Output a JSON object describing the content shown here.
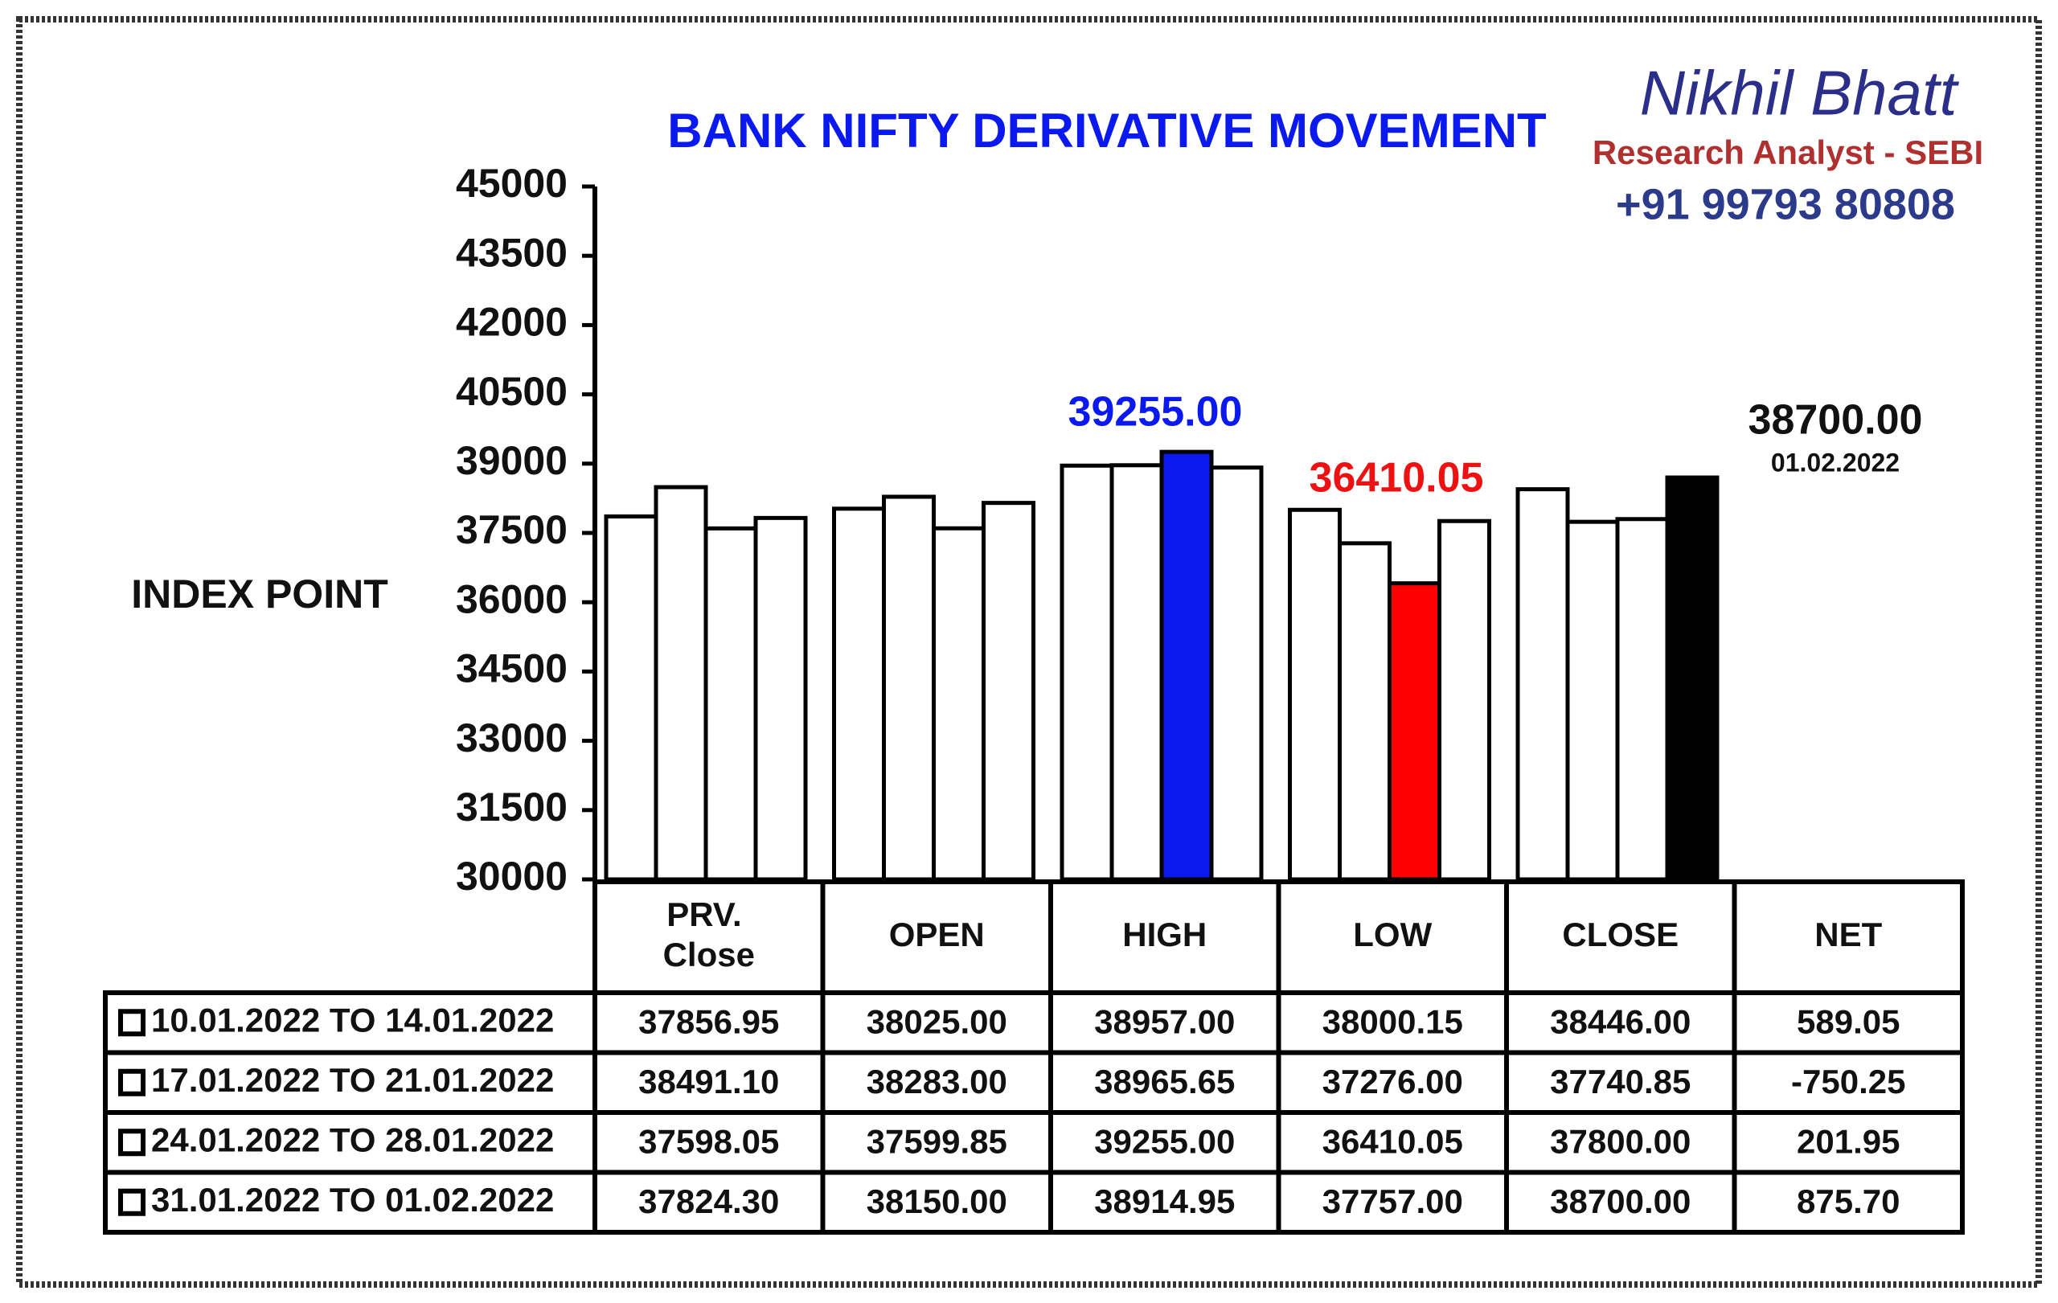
{
  "chart_data": {
    "type": "bar",
    "title": "BANK NIFTY DERIVATIVE MOVEMENT",
    "y_label": "INDEX POINT",
    "brand": {
      "name": "Nikhil Bhatt",
      "role": "Research Analyst - SEBI",
      "phone": "+91 99793 80808"
    },
    "categories": [
      "PRV. Close",
      "OPEN",
      "HIGH",
      "LOW",
      "CLOSE"
    ],
    "net_name": "NET",
    "ylim": [
      30000,
      45000
    ],
    "yticks": [
      30000,
      31500,
      33000,
      34500,
      36000,
      37500,
      39000,
      40500,
      42000,
      43500,
      45000
    ],
    "series": [
      {
        "name": "10.01.2022 TO 14.01.2022",
        "color": "#ffffff",
        "colors": [
          "#ffffff",
          "#ffffff",
          "#ffffff",
          "#ffffff",
          "#ffffff"
        ],
        "values": [
          37856.95,
          38025,
          38957,
          38000.15,
          38446
        ],
        "value_labels": [
          "37856.95",
          "38025.00",
          "38957.00",
          "38000.15",
          "38446.00"
        ]
      },
      {
        "name": "17.01.2022 TO 21.01.2022",
        "color": "#ffffff",
        "colors": [
          "#ffffff",
          "#ffffff",
          "#ffffff",
          "#ffffff",
          "#ffffff"
        ],
        "values": [
          38491.1,
          38283,
          38965.65,
          37276,
          37740.85
        ],
        "value_labels": [
          "38491.10",
          "38283.00",
          "38965.65",
          "37276.00",
          "37740.85"
        ]
      },
      {
        "name": "24.01.2022 TO 28.01.2022",
        "color": "#ffffff",
        "colors": [
          "#ffffff",
          "#ffffff",
          "#0a1aee",
          "#ff0000",
          "#ffffff"
        ],
        "values": [
          37598.05,
          37599.85,
          39255,
          36410.05,
          37800
        ],
        "value_labels": [
          "37598.05",
          "37599.85",
          "39255.00",
          "36410.05",
          "37800.00"
        ]
      },
      {
        "name": "31.01.2022 TO 01.02.2022",
        "color": "#ffffff",
        "colors": [
          "#ffffff",
          "#ffffff",
          "#ffffff",
          "#ffffff",
          "#000000"
        ],
        "values": [
          37824.3,
          38150,
          38914.95,
          37757,
          38700
        ],
        "value_labels": [
          "37824.30",
          "38150.00",
          "38914.95",
          "37757.00",
          "38700.00"
        ]
      }
    ],
    "net": [
      589.05,
      -750.25,
      201.95,
      875.7
    ],
    "net_labels": [
      "589.05",
      "-750.25",
      "201.95",
      "875.70"
    ],
    "annotations": [
      {
        "text": "39255.00",
        "color": "#0a1aee"
      },
      {
        "text": "36410.05",
        "color": "#ee1111"
      },
      {
        "text": "38700.00",
        "color": "#111111"
      },
      {
        "text": "01.02.2022",
        "color": "#111111"
      }
    ]
  }
}
